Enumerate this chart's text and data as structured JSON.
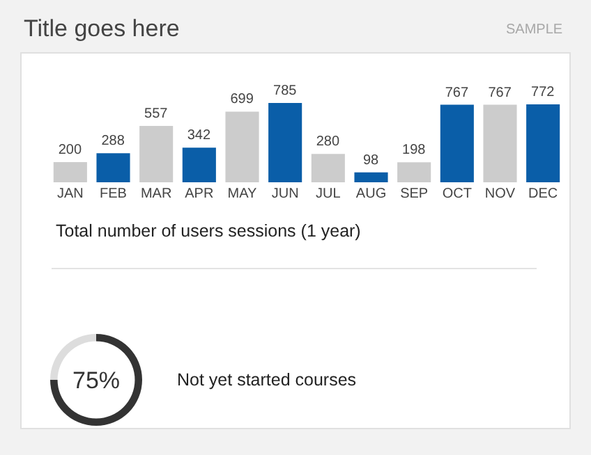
{
  "chart_data": [
    {
      "type": "bar",
      "title": "Title goes here",
      "annotations": [
        "SAMPLE"
      ],
      "xlabel": "Total number of users sessions (1 year)",
      "categories": [
        "JAN",
        "FEB",
        "MAR",
        "APR",
        "MAY",
        "JUN",
        "JUL",
        "AUG",
        "SEP",
        "OCT",
        "NOV",
        "DEC"
      ],
      "values": [
        200,
        288,
        557,
        342,
        699,
        785,
        280,
        98,
        198,
        767,
        767,
        772
      ],
      "colors": [
        "#cccccc",
        "#0a5ea8",
        "#cccccc",
        "#0a5ea8",
        "#cccccc",
        "#0a5ea8",
        "#cccccc",
        "#0a5ea8",
        "#cccccc",
        "#0a5ea8",
        "#cccccc",
        "#0a5ea8"
      ],
      "data_labels": true
    },
    {
      "type": "donut",
      "categories": [
        null,
        null
      ],
      "values": [
        75,
        25
      ],
      "colors": [
        "#333333",
        "#dddddd"
      ],
      "annotations": [
        "75%",
        "Not yet started courses"
      ]
    }
  ]
}
